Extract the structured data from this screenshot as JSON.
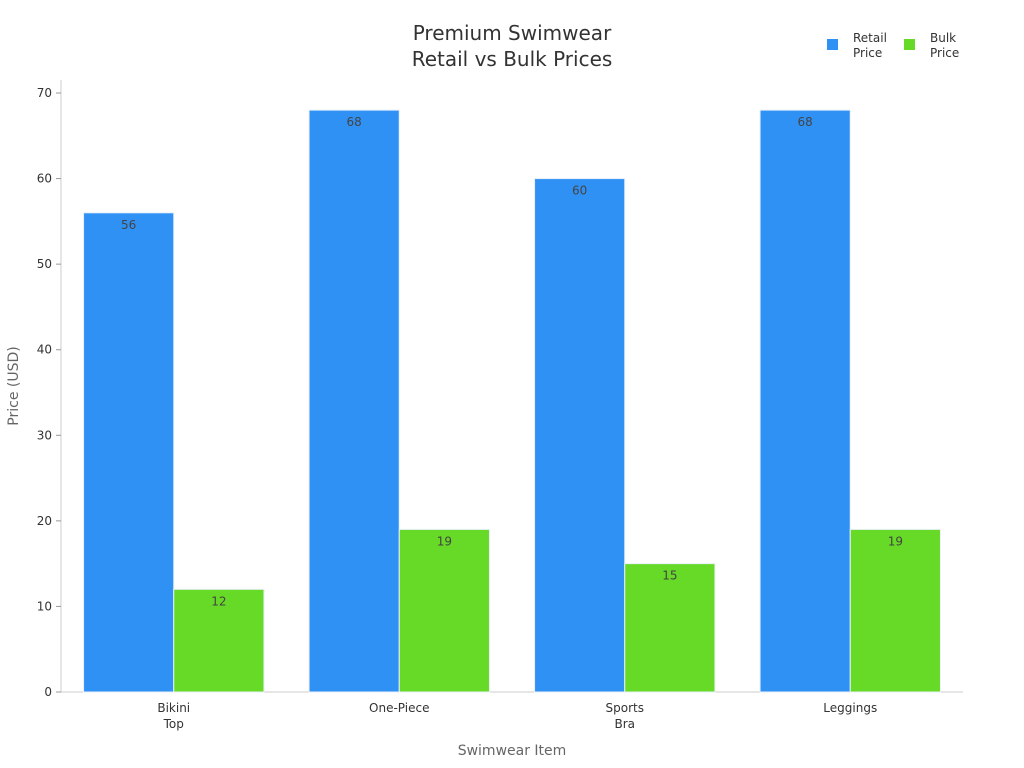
{
  "chart_data": {
    "type": "bar",
    "title": "Premium Swimwear\nRetail vs Bulk Prices",
    "x_label": "Swimwear Item",
    "y_label": "Price (USD)",
    "categories": [
      "Bikini\nTop",
      "One-Piece",
      "Sports\nBra",
      "Leggings"
    ],
    "series": [
      {
        "name": "Retail\nPrice",
        "color": "#3091f5",
        "values": [
          56,
          68,
          60,
          68
        ]
      },
      {
        "name": "Bulk\nPrice",
        "color": "#66da26",
        "values": [
          12,
          19,
          15,
          19
        ]
      }
    ],
    "ylim": [
      0,
      70
    ],
    "yticks": [
      0,
      10,
      20,
      30,
      40,
      50,
      60,
      70
    ],
    "grid": false,
    "legend": "top-right"
  }
}
